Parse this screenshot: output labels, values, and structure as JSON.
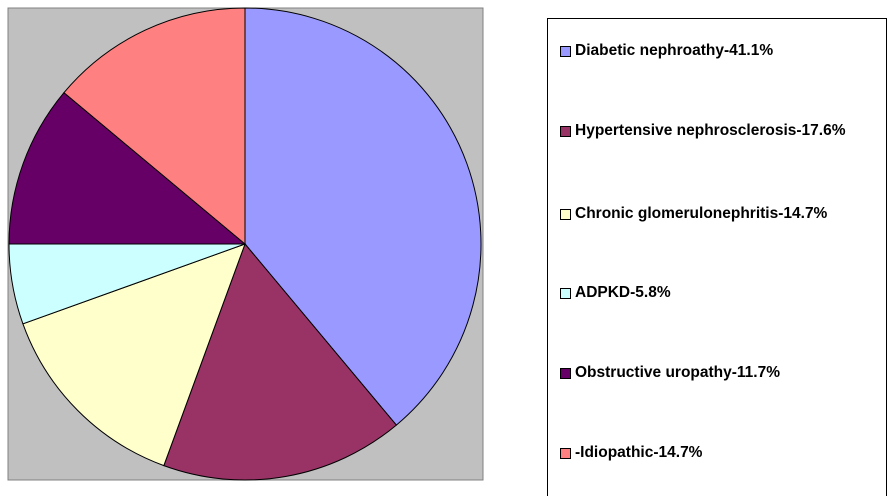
{
  "chart_data": {
    "type": "pie",
    "categories": [
      "Diabetic nephroathy-41.1%",
      "Hypertensive nephrosclerosis-17.6%",
      "Chronic glomerulonephritis-14.7%",
      "ADPKD-5.8%",
      "Obstructive uropathy-11.7%",
      "-Idiopathic-14.7%"
    ],
    "values": [
      41.1,
      17.6,
      14.7,
      5.8,
      11.7,
      14.7
    ],
    "colors": [
      "#9999ff",
      "#993366",
      "#ffffcc",
      "#ccffff",
      "#660066",
      "#ff8080"
    ],
    "legend": "right"
  }
}
